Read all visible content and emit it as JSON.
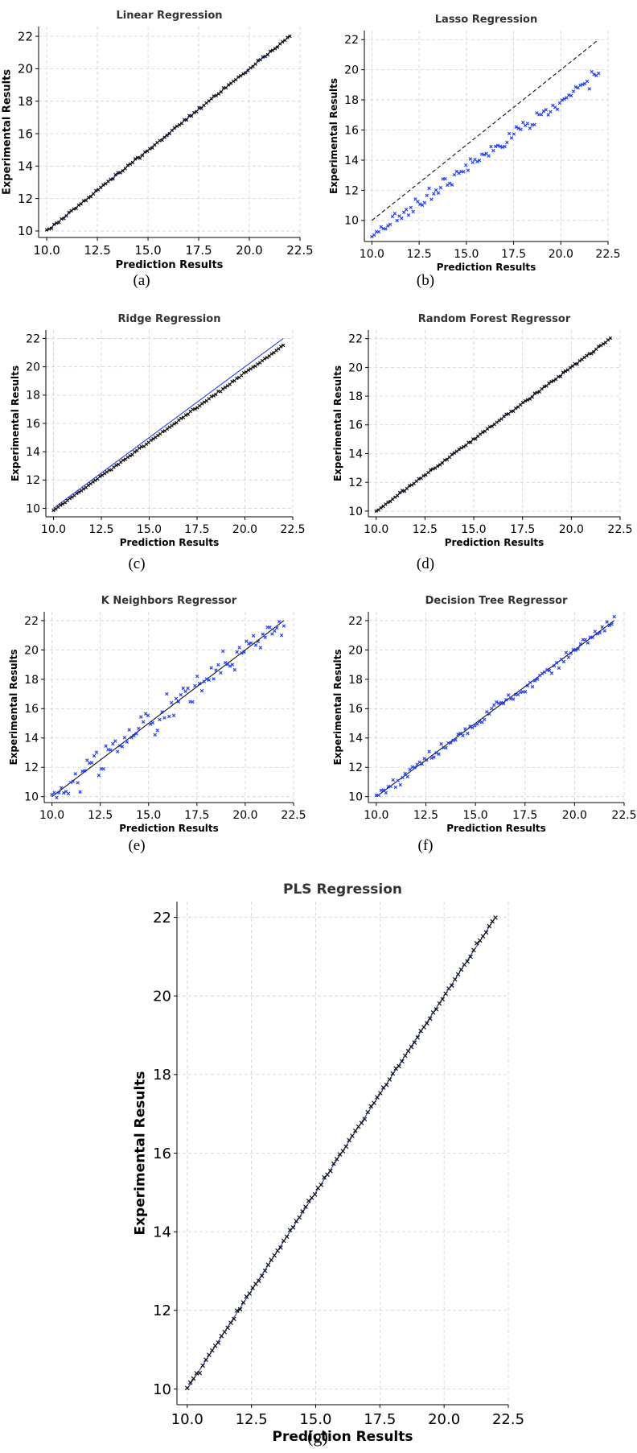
{
  "chart_data": [
    {
      "id": "a",
      "type": "scatter",
      "caption": "(a)",
      "title": "Linear Regression",
      "xlabel": "Prediction Results",
      "ylabel": "Experimental Results",
      "xlim": [
        9.6,
        22.5
      ],
      "ylim": [
        9.6,
        22.6
      ],
      "xticks": [
        "10.0",
        "12.5",
        "15.0",
        "17.5",
        "20.0",
        "22.5"
      ],
      "xtick_values": [
        10,
        12.5,
        15,
        17.5,
        20,
        22.5
      ],
      "yticks": [
        "10",
        "12",
        "14",
        "16",
        "18",
        "20",
        "22"
      ],
      "ytick_values": [
        10,
        12,
        14,
        16,
        18,
        20,
        22
      ],
      "grid": true,
      "reference_line": {
        "from": [
          10,
          10
        ],
        "to": [
          22,
          22
        ],
        "style": "solid",
        "color": "#1f3fbf"
      },
      "series": [
        {
          "x_range": [
            10,
            22
          ],
          "n": 100,
          "slope": 1.0,
          "intercept": 0.0,
          "noise": 0.05,
          "marker": "x",
          "color": "#111111"
        }
      ]
    },
    {
      "id": "b",
      "type": "scatter",
      "caption": "(b)",
      "title": "Lasso Regression",
      "xlabel": "Prediction Results",
      "ylabel": "Experimental Results",
      "xlim": [
        9.6,
        22.5
      ],
      "ylim": [
        8.6,
        22.6
      ],
      "xticks": [
        "10.0",
        "12.5",
        "15.0",
        "17.5",
        "20.0",
        "22.5"
      ],
      "xtick_values": [
        10,
        12.5,
        15,
        17.5,
        20,
        22.5
      ],
      "yticks": [
        "10",
        "12",
        "14",
        "16",
        "18",
        "20",
        "22"
      ],
      "ytick_values": [
        10,
        12,
        14,
        16,
        18,
        20,
        22
      ],
      "grid": true,
      "reference_line": {
        "from": [
          10,
          10
        ],
        "to": [
          22,
          22
        ],
        "style": "dashed",
        "color": "#111111"
      },
      "series": [
        {
          "x_range": [
            10,
            22
          ],
          "n": 100,
          "slope": 0.89,
          "intercept": 0.1,
          "noise": 0.22,
          "marker": "x",
          "color": "#1f3fff"
        }
      ]
    },
    {
      "id": "c",
      "type": "scatter",
      "caption": "(c)",
      "title": "Ridge Regression",
      "xlabel": "Prediction Results",
      "ylabel": "Experimental Results",
      "xlim": [
        9.6,
        22.5
      ],
      "ylim": [
        9.4,
        22.6
      ],
      "xticks": [
        "10.0",
        "12.5",
        "15.0",
        "17.5",
        "20.0",
        "22.5"
      ],
      "xtick_values": [
        10,
        12.5,
        15,
        17.5,
        20,
        22.5
      ],
      "yticks": [
        "10",
        "12",
        "14",
        "16",
        "18",
        "20",
        "22"
      ],
      "ytick_values": [
        10,
        12,
        14,
        16,
        18,
        20,
        22
      ],
      "grid": true,
      "reference_line": {
        "from": [
          10,
          10
        ],
        "to": [
          22,
          22
        ],
        "style": "solid",
        "color": "#2040ff"
      },
      "series": [
        {
          "x_range": [
            10,
            22
          ],
          "n": 100,
          "slope": 0.97,
          "intercept": 0.16,
          "noise": 0.03,
          "marker": "x",
          "color": "#111111"
        }
      ]
    },
    {
      "id": "d",
      "type": "scatter",
      "caption": "(d)",
      "title": "Random Forest Regressor",
      "xlabel": "Prediction Results",
      "ylabel": "Experimental Results",
      "xlim": [
        9.6,
        22.5
      ],
      "ylim": [
        9.6,
        22.6
      ],
      "xticks": [
        "10.0",
        "12.5",
        "15.0",
        "17.5",
        "20.0",
        "22.5"
      ],
      "xtick_values": [
        10,
        12.5,
        15,
        17.5,
        20,
        22.5
      ],
      "yticks": [
        "10",
        "12",
        "14",
        "16",
        "18",
        "20",
        "22"
      ],
      "ytick_values": [
        10,
        12,
        14,
        16,
        18,
        20,
        22
      ],
      "grid": true,
      "reference_line": {
        "from": [
          10,
          10
        ],
        "to": [
          22,
          22
        ],
        "style": "solid",
        "color": "#1f3fbf"
      },
      "series": [
        {
          "x_range": [
            10,
            22
          ],
          "n": 100,
          "slope": 1.0,
          "intercept": 0.0,
          "noise": 0.04,
          "marker": "x",
          "color": "#111111"
        }
      ]
    },
    {
      "id": "e",
      "type": "scatter",
      "caption": "(e)",
      "title": "K Neighbors Regressor",
      "xlabel": "Prediction Results",
      "ylabel": "Experimental Results",
      "xlim": [
        9.6,
        22.5
      ],
      "ylim": [
        9.6,
        22.6
      ],
      "xticks": [
        "10.0",
        "12.5",
        "15.0",
        "17.5",
        "20.0",
        "22.5"
      ],
      "xtick_values": [
        10,
        12.5,
        15,
        17.5,
        20,
        22.5
      ],
      "yticks": [
        "10",
        "12",
        "14",
        "16",
        "18",
        "20",
        "22"
      ],
      "ytick_values": [
        10,
        12,
        14,
        16,
        18,
        20,
        22
      ],
      "grid": true,
      "reference_line": {
        "from": [
          10,
          10
        ],
        "to": [
          22,
          22
        ],
        "style": "solid",
        "color": "#111111"
      },
      "series": [
        {
          "x_range": [
            10,
            22
          ],
          "n": 100,
          "slope": 1.0,
          "intercept": 0.0,
          "noise": 0.45,
          "marker": "x",
          "color": "#1f3fff"
        }
      ]
    },
    {
      "id": "f",
      "type": "scatter",
      "caption": "(f)",
      "title": "Decision Tree Regressor",
      "xlabel": "Prediction Results",
      "ylabel": "Experimental Results",
      "xlim": [
        9.6,
        22.5
      ],
      "ylim": [
        9.6,
        22.6
      ],
      "xticks": [
        "10.0",
        "12.5",
        "15.0",
        "17.5",
        "20.0",
        "22.5"
      ],
      "xtick_values": [
        10,
        12.5,
        15,
        17.5,
        20,
        22.5
      ],
      "yticks": [
        "10",
        "12",
        "14",
        "16",
        "18",
        "20",
        "22"
      ],
      "ytick_values": [
        10,
        12,
        14,
        16,
        18,
        20,
        22
      ],
      "grid": true,
      "reference_line": {
        "from": [
          10,
          10
        ],
        "to": [
          22,
          22
        ],
        "style": "solid",
        "color": "#111111"
      },
      "series": [
        {
          "x_range": [
            10,
            22
          ],
          "n": 100,
          "slope": 1.0,
          "intercept": 0.0,
          "noise": 0.18,
          "marker": "x",
          "color": "#1f3fff"
        }
      ]
    },
    {
      "id": "g",
      "type": "scatter",
      "caption": "(g)",
      "title": "PLS Regression",
      "xlabel": "Prediction Results",
      "ylabel": "Experimental Results",
      "xlim": [
        9.6,
        22.5
      ],
      "ylim": [
        9.6,
        22.4
      ],
      "xticks": [
        "10.0",
        "12.5",
        "15.0",
        "17.5",
        "20.0",
        "22.5"
      ],
      "xtick_values": [
        10,
        12.5,
        15,
        17.5,
        20,
        22.5
      ],
      "yticks": [
        "10",
        "12",
        "14",
        "16",
        "18",
        "20",
        "22"
      ],
      "ytick_values": [
        10,
        12,
        14,
        16,
        18,
        20,
        22
      ],
      "grid": true,
      "reference_line": {
        "from": [
          10,
          10
        ],
        "to": [
          22,
          22
        ],
        "style": "solid",
        "color": "#1f3fbf"
      },
      "series": [
        {
          "x_range": [
            10,
            22
          ],
          "n": 100,
          "slope": 1.0,
          "intercept": 0.0,
          "noise": 0.03,
          "marker": "x",
          "color": "#111111"
        }
      ]
    }
  ]
}
